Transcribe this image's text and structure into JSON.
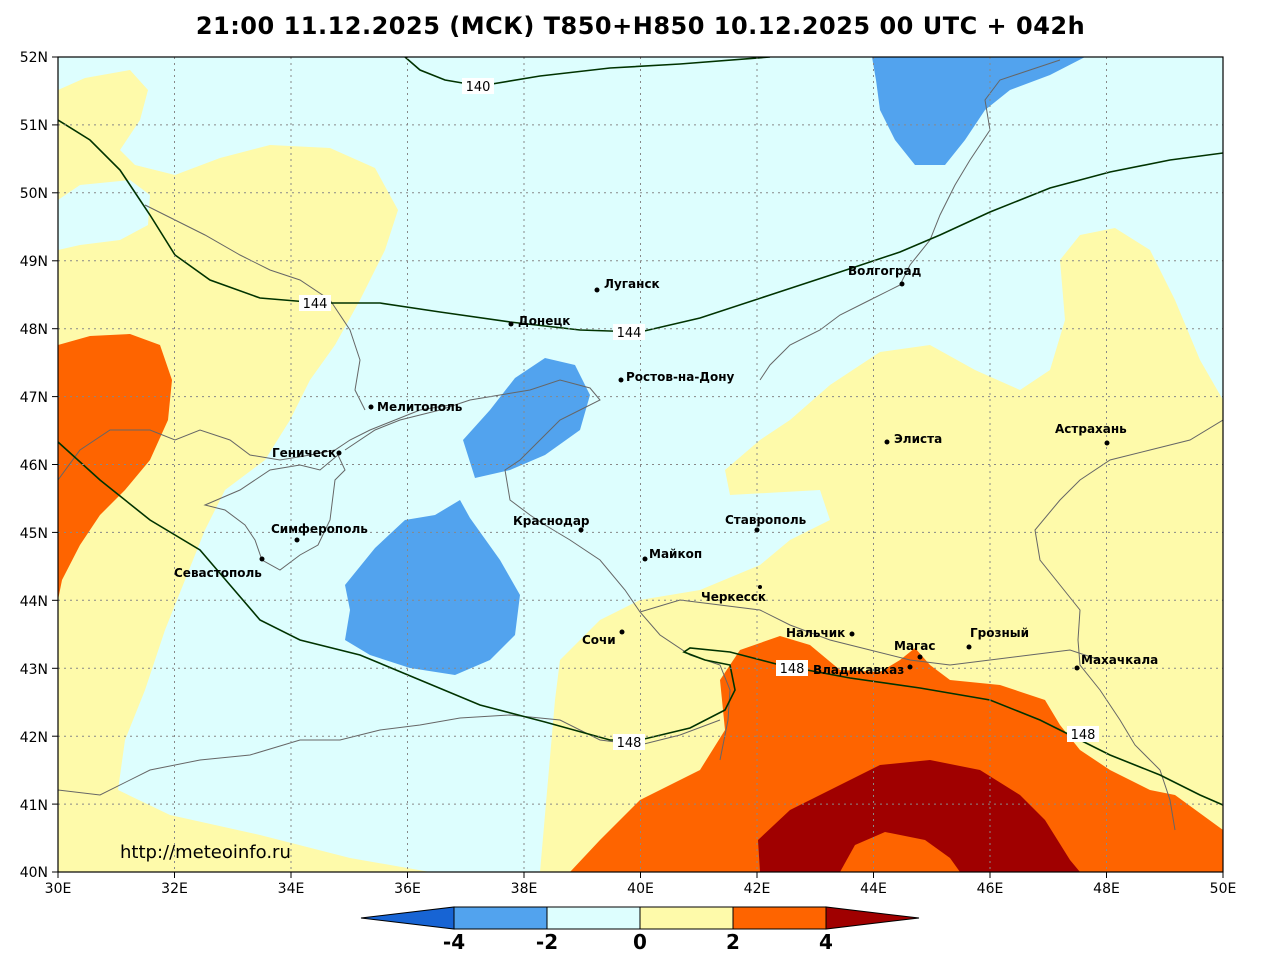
{
  "title": "21:00 11.12.2025 (МСК) T850+H850 10.12.2025 00 UTC + 042h",
  "url": "http://meteoinfo.ru",
  "lon_labels": [
    "30E",
    "32E",
    "34E",
    "36E",
    "38E",
    "40E",
    "42E",
    "44E",
    "46E",
    "48E",
    "50E"
  ],
  "lat_labels": [
    "52N",
    "51N",
    "50N",
    "49N",
    "48N",
    "47N",
    "46N",
    "45N",
    "44N",
    "43N",
    "42N",
    "41N",
    "40N"
  ],
  "colors": {
    "t_m4_m2": "#52a3ee",
    "t_m2_0": "#ddfefe",
    "t_0_2": "#fefaaa",
    "t_2_4": "#fe6400",
    "t_gt4": "#a00000",
    "t_lt_m4": "#1764d4",
    "contour": "#003300",
    "coast": "#666666"
  },
  "isolines": [
    {
      "label": "140"
    },
    {
      "label": "144"
    },
    {
      "label": "144"
    },
    {
      "label": "148"
    },
    {
      "label": "148"
    },
    {
      "label": "148"
    }
  ],
  "cities": [
    {
      "name": "Луганск"
    },
    {
      "name": "Волгоград"
    },
    {
      "name": "Донецк"
    },
    {
      "name": "Ростов-на-Дону"
    },
    {
      "name": "Мелитополь"
    },
    {
      "name": "Элиста"
    },
    {
      "name": "Астрахань"
    },
    {
      "name": "Геническ"
    },
    {
      "name": "Краснодар"
    },
    {
      "name": "Ставрополь"
    },
    {
      "name": "Симферополь"
    },
    {
      "name": "Майкоп"
    },
    {
      "name": "Севастополь"
    },
    {
      "name": "Черкесск"
    },
    {
      "name": "Нальчик"
    },
    {
      "name": "Грозный"
    },
    {
      "name": "Сочи"
    },
    {
      "name": "Магас"
    },
    {
      "name": "Махачкала"
    },
    {
      "name": "Владикавказ"
    }
  ],
  "colorbar": {
    "labels": [
      "-4",
      "-2",
      "0",
      "2",
      "4"
    ]
  }
}
